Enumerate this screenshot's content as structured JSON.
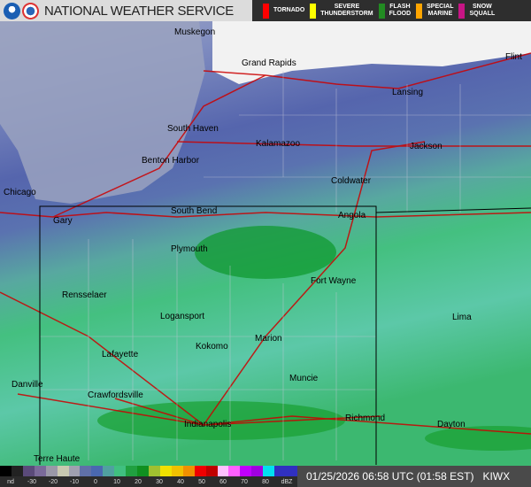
{
  "header": {
    "title": "NATIONAL WEATHER SERVICE",
    "logos": [
      "noaa-logo",
      "nws-logo"
    ]
  },
  "warnings_legend": [
    {
      "label": "TORNADO",
      "color": "#ff0000"
    },
    {
      "label": "SEVERE\nTHUNDERSTORM",
      "color": "#ffff00"
    },
    {
      "label": "FLASH\nFLOOD",
      "color": "#228b22"
    },
    {
      "label": "SPECIAL\nMARINE",
      "color": "#ffa500"
    },
    {
      "label": "SNOW\nSQUALL",
      "color": "#c71585"
    }
  ],
  "cities": [
    "Muskegon",
    "Grand Rapids",
    "Flint",
    "Lansing",
    "South Haven",
    "Kalamazoo",
    "Jackson",
    "Benton Harbor",
    "Coldwater",
    "Chicago",
    "Gary",
    "South Bend",
    "Angola",
    "Plymouth",
    "Fort Wayne",
    "Rensselaer",
    "Logansport",
    "Lima",
    "Kokomo",
    "Marion",
    "Lafayette",
    "Danville",
    "Crawfordsville",
    "Muncie",
    "Richmond",
    "Indianapolis",
    "Dayton",
    "Terre Haute"
  ],
  "scale": {
    "labels": [
      "nd",
      "-30",
      "-20",
      "-10",
      "0",
      "10",
      "20",
      "30",
      "40",
      "50",
      "60",
      "70",
      "80",
      "dBZ"
    ],
    "colors": [
      "#000",
      "#222",
      "#5a4a7a",
      "#7a6a9a",
      "#9a98a8",
      "#c8c8b0",
      "#a0a0b0",
      "#6070a8",
      "#4a68b0",
      "#50a0a0",
      "#40c080",
      "#20a040",
      "#109020",
      "#a0c030",
      "#f0e000",
      "#f0c000",
      "#f09000",
      "#f00000",
      "#c00000",
      "#ffc0ff",
      "#ff60ff",
      "#c000ff",
      "#a000e0",
      "#00e0f0",
      "#3030c0",
      "#3030c0"
    ]
  },
  "timestamp": "01/25/2026 06:58 UTC (01:58 EST)",
  "station": "KIWX"
}
